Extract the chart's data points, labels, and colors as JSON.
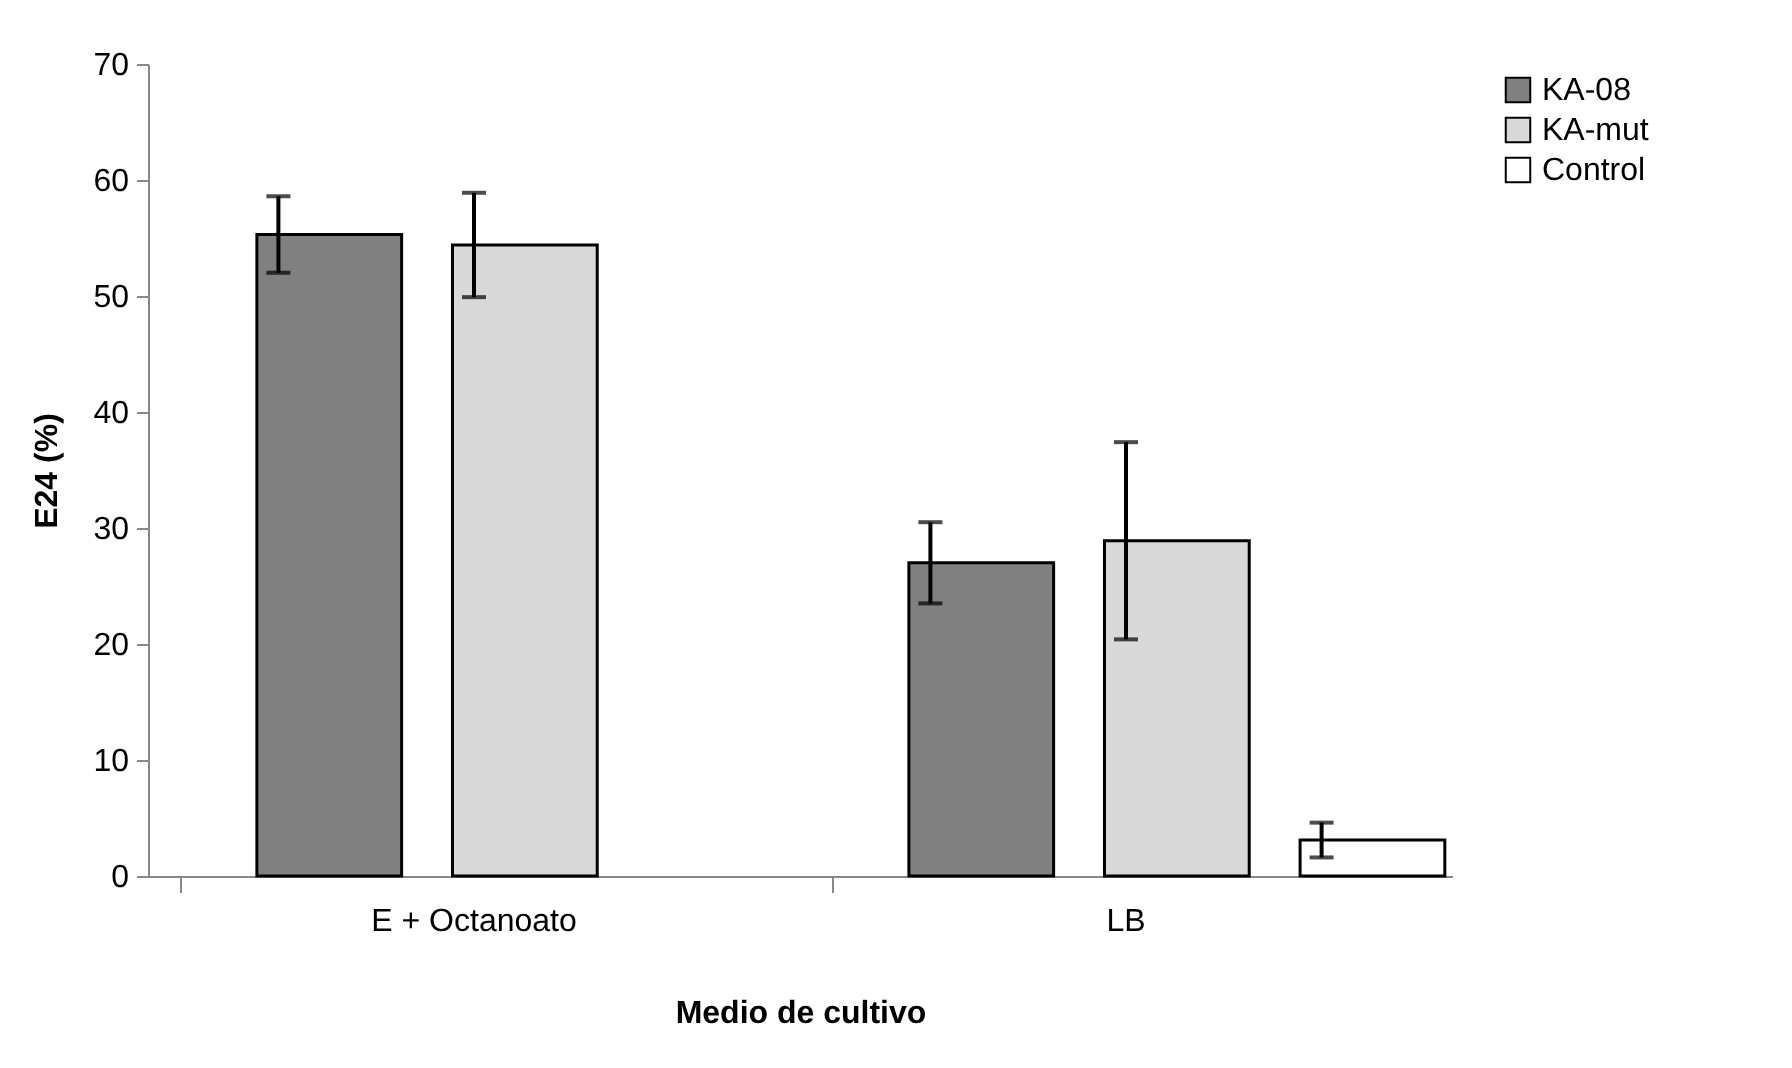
{
  "chart_data": {
    "type": "bar",
    "xlabel": "Medio de cultivo",
    "ylabel": "E24 (%)",
    "categories": [
      "E + Octanoato",
      "LB"
    ],
    "series": [
      {
        "name": "KA-08",
        "color": "#808080",
        "values": [
          55.3,
          27.0
        ],
        "errors": [
          3.3,
          3.5
        ]
      },
      {
        "name": "KA-mut",
        "color": "#d9d9d9",
        "values": [
          54.4,
          28.9
        ],
        "errors": [
          4.5,
          8.5
        ]
      },
      {
        "name": "Control",
        "color": "#ffffff",
        "values": [
          null,
          3.1
        ],
        "errors": [
          null,
          1.5
        ]
      }
    ],
    "ylim": [
      0,
      70
    ],
    "yticks": [
      0,
      10,
      20,
      30,
      40,
      50,
      60,
      70
    ],
    "grid": false,
    "legend": "top right"
  }
}
